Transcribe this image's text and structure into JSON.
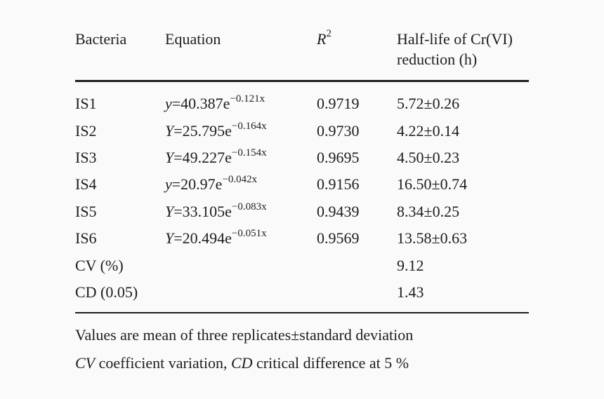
{
  "table": {
    "headers": {
      "bacteria": "Bacteria",
      "equation": "Equation",
      "r2_base": "R",
      "r2_exp": "2",
      "halflife_line1": "Half-life of Cr(VI)",
      "halflife_line2": "reduction (h)"
    },
    "rows": [
      {
        "bacteria": "IS1",
        "eq_var": "y",
        "eq_rest": "=40.387e",
        "eq_exp": "−0.121x",
        "r2": "0.9719",
        "halflife": "5.72±0.26"
      },
      {
        "bacteria": "IS2",
        "eq_var": "Y",
        "eq_rest": "=25.795e",
        "eq_exp": "−0.164x",
        "r2": "0.9730",
        "halflife": "4.22±0.14"
      },
      {
        "bacteria": "IS3",
        "eq_var": "Y",
        "eq_rest": "=49.227e",
        "eq_exp": "−0.154x",
        "r2": "0.9695",
        "halflife": "4.50±0.23"
      },
      {
        "bacteria": "IS4",
        "eq_var": "y",
        "eq_rest": "=20.97e",
        "eq_exp": "−0.042x",
        "r2": "0.9156",
        "halflife": "16.50±0.74"
      },
      {
        "bacteria": "IS5",
        "eq_var": "Y",
        "eq_rest": "=33.105e",
        "eq_exp": "−0.083x",
        "r2": "0.9439",
        "halflife": "8.34±0.25"
      },
      {
        "bacteria": "IS6",
        "eq_var": "Y",
        "eq_rest": "=20.494e",
        "eq_exp": "−0.051x",
        "r2": "0.9569",
        "halflife": "13.58±0.63"
      }
    ],
    "summary": [
      {
        "label": "CV (%)",
        "halflife": "9.12"
      },
      {
        "label": "CD (0.05)",
        "halflife": "1.43"
      }
    ]
  },
  "footnotes": {
    "line1": "Values are mean of three replicates±standard deviation",
    "cv_abbr": "CV",
    "cv_text": " coefficient variation, ",
    "cd_abbr": "CD",
    "cd_text": " critical difference at 5 %"
  }
}
